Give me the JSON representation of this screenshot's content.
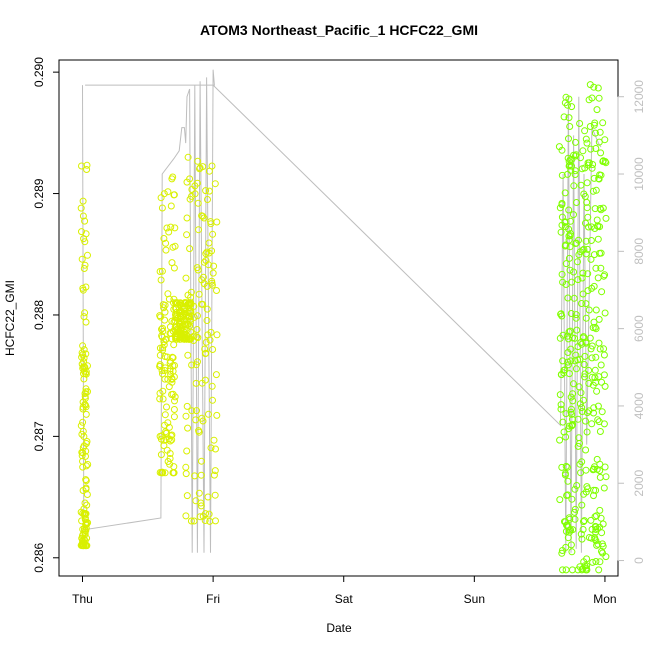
{
  "chart_data": {
    "type": "scatter",
    "title": "ATOM3 Northeast_Pacific_1 HCFC22_GMI",
    "xlabel": "Date",
    "ylabel": "HCFC22_GMI",
    "x_ticks": [
      "Thu",
      "Fri",
      "Sat",
      "Sun",
      "Mon"
    ],
    "x_range_days": [
      -0.18,
      4.1
    ],
    "ylim": [
      0.28585,
      0.2901
    ],
    "y_ticks": [
      0.286,
      0.287,
      0.288,
      0.289,
      0.29
    ],
    "y2lim": [
      -400,
      12950
    ],
    "y2_ticks": [
      0,
      2000,
      4000,
      6000,
      8000,
      10000,
      12000
    ],
    "colors": {
      "early": "#d9f000",
      "late": "#80ff00",
      "altitude": "#bebebe"
    },
    "series": [
      {
        "role": "HCFC22_GMI",
        "axis": "left",
        "marker": "open-circle",
        "segments": [
          {
            "x": [
              0.0,
              0.01,
              0.02,
              0.03
            ],
            "y_low": 0.2861,
            "y_high": 0.2893,
            "dense": [
              0.2861,
              0.2864,
              0.287,
              0.2875
            ]
          },
          {
            "x": [
              0.6,
              0.62,
              0.64,
              0.66,
              0.68,
              0.7
            ],
            "y_low": 0.2867,
            "y_high": 0.2892,
            "dense": [
              0.2868,
              0.2873,
              0.2877,
              0.2878
            ]
          },
          {
            "x": [
              0.72,
              0.75,
              0.78,
              0.8,
              0.82
            ],
            "y_low": 0.2878,
            "y_high": 0.2881,
            "dense": [
              0.2878,
              0.288,
              0.2881
            ]
          },
          {
            "x": [
              0.8,
              0.83,
              0.86,
              0.88,
              0.9,
              0.92,
              0.94,
              0.96,
              0.98,
              1.0,
              1.02
            ],
            "y_low": 0.2863,
            "y_high": 0.2893,
            "dense": [
              0.287,
              0.2875,
              0.288,
              0.2885,
              0.289,
              0.2865
            ]
          },
          {
            "x": [
              3.66,
              3.68,
              3.7,
              3.72,
              3.74,
              3.76,
              3.78,
              3.8,
              3.82,
              3.84,
              3.86,
              3.88,
              3.9,
              3.92,
              3.94,
              3.96,
              3.98,
              4.0
            ],
            "y_low": 0.2859,
            "y_high": 0.2899,
            "dense": [
              0.286,
              0.2865,
              0.287,
              0.2875,
              0.2878,
              0.2885,
              0.289,
              0.2895
            ]
          }
        ]
      },
      {
        "role": "altitude",
        "axis": "right",
        "points": [
          [
            0.0,
            12300
          ],
          [
            0.01,
            1000
          ],
          [
            0.02,
            800
          ],
          [
            0.6,
            1100
          ],
          [
            0.61,
            10000
          ],
          [
            0.7,
            10400
          ],
          [
            0.74,
            10600
          ],
          [
            0.76,
            11200
          ],
          [
            0.78,
            11200
          ],
          [
            0.79,
            10800
          ],
          [
            0.8,
            12000
          ],
          [
            0.82,
            12200
          ],
          [
            0.84,
            200
          ],
          [
            0.86,
            12300
          ],
          [
            0.88,
            200
          ],
          [
            0.9,
            12400
          ],
          [
            0.93,
            200
          ],
          [
            0.95,
            12500
          ],
          [
            0.98,
            200
          ],
          [
            1.0,
            12700
          ],
          [
            1.01,
            12300
          ],
          [
            0.02,
            12300
          ],
          [
            1.0,
            12300
          ],
          [
            3.66,
            3500
          ],
          [
            3.68,
            10000
          ],
          [
            3.7,
            200
          ],
          [
            3.72,
            12000
          ],
          [
            3.74,
            200
          ],
          [
            3.76,
            11000
          ],
          [
            3.78,
            300
          ],
          [
            3.8,
            12000
          ],
          [
            3.82,
            200
          ],
          [
            3.84,
            10000
          ],
          [
            3.86,
            3000
          ],
          [
            3.9,
            11200
          ],
          [
            3.95,
            10800
          ],
          [
            3.97,
            10700
          ]
        ]
      }
    ]
  }
}
